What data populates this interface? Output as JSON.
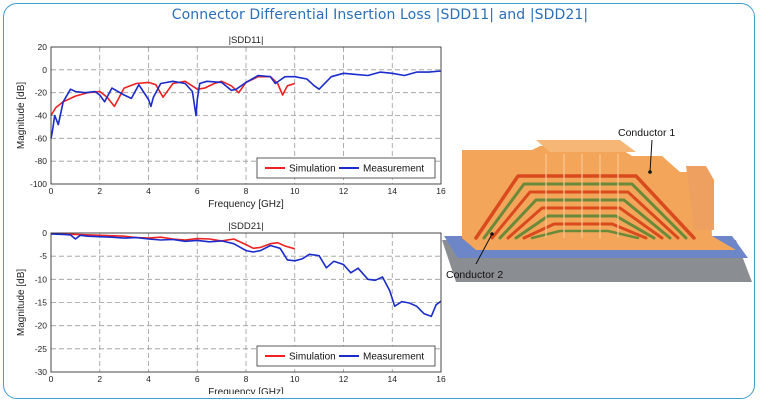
{
  "page": {
    "title": "Connector Differential Insertion Loss |SDD11| and |SDD21|"
  },
  "colors": {
    "simulation": "#ee2222",
    "measurement": "#1a2ccc",
    "title": "#2a6fb8",
    "frame": "#3c9fd1"
  },
  "chart_data": [
    {
      "type": "line",
      "title": "|SDD11|",
      "xlabel": "Frequency [GHz]",
      "ylabel": "Magnitude [dB]",
      "xlim": [
        0,
        16
      ],
      "ylim": [
        -100,
        20
      ],
      "xticks": [
        0,
        2,
        4,
        6,
        8,
        10,
        12,
        14,
        16
      ],
      "yticks": [
        20,
        0,
        -20,
        -40,
        -60,
        -80,
        -100
      ],
      "grid": true,
      "legend": "bottom-right",
      "series": [
        {
          "name": "Simulation",
          "color": "#ee2222",
          "x": [
            0,
            0.2,
            0.5,
            1,
            1.5,
            2,
            2.3,
            2.6,
            3,
            3.5,
            4,
            4.3,
            4.6,
            5,
            5.5,
            6,
            6.3,
            6.7,
            7,
            7.4,
            7.7,
            8,
            8.5,
            9,
            9.3,
            9.5,
            9.7,
            10
          ],
          "y": [
            -40,
            -33,
            -28,
            -23,
            -20,
            -19,
            -24,
            -32,
            -16,
            -12,
            -11,
            -13,
            -24,
            -12,
            -10,
            -17,
            -16,
            -12,
            -10,
            -14,
            -20,
            -11,
            -6,
            -6,
            -12,
            -22,
            -14,
            -12
          ]
        },
        {
          "name": "Measurement",
          "color": "#1a2ccc",
          "x": [
            0,
            0.05,
            0.15,
            0.3,
            0.5,
            0.8,
            1,
            1.4,
            1.8,
            2,
            2.2,
            2.5,
            3,
            3.3,
            3.6,
            4,
            4.1,
            4.2,
            4.5,
            5,
            5.5,
            5.8,
            5.95,
            6,
            6.1,
            6.4,
            7,
            7.4,
            7.6,
            8,
            8.5,
            9,
            9.2,
            9.4,
            9.6,
            10,
            10.5,
            10.8,
            11,
            11.5,
            12,
            12.5,
            13,
            13.5,
            14,
            14.5,
            15,
            15.5,
            16
          ],
          "y": [
            -60,
            -55,
            -40,
            -48,
            -28,
            -17,
            -19,
            -20,
            -19,
            -22,
            -28,
            -16,
            -22,
            -25,
            -13,
            -26,
            -32,
            -24,
            -12,
            -10,
            -12,
            -19,
            -40,
            -26,
            -12,
            -10,
            -11,
            -18,
            -17,
            -11,
            -5,
            -6,
            -12,
            -9,
            -6,
            -6,
            -8,
            -14,
            -17,
            -6,
            -3,
            -4,
            -5,
            -2,
            -3,
            -5,
            -2,
            -2,
            -1
          ]
        }
      ]
    },
    {
      "type": "line",
      "title": "|SDD21|",
      "xlabel": "Frequency [GHz]",
      "ylabel": "Magnitude [dB]",
      "xlim": [
        0,
        16
      ],
      "ylim": [
        -30,
        0
      ],
      "xticks": [
        0,
        2,
        4,
        6,
        8,
        10,
        12,
        14,
        16
      ],
      "yticks": [
        0,
        -5,
        -10,
        -15,
        -20,
        -25,
        -30
      ],
      "grid": true,
      "legend": "bottom-right",
      "series": [
        {
          "name": "Simulation",
          "color": "#ee2222",
          "x": [
            0,
            0.5,
            1,
            2,
            3,
            3.5,
            4,
            4.5,
            5,
            5.5,
            6,
            6.5,
            7,
            7.5,
            8,
            8.3,
            8.6,
            9,
            9.3,
            9.6,
            10
          ],
          "y": [
            -0.1,
            -0.2,
            -0.3,
            -0.5,
            -0.7,
            -1,
            -1.1,
            -0.9,
            -1.3,
            -1.5,
            -1.2,
            -1.3,
            -1.7,
            -1.3,
            -2.5,
            -3.3,
            -3.1,
            -2.3,
            -2.1,
            -2.8,
            -3.4
          ]
        },
        {
          "name": "Measurement",
          "color": "#1a2ccc",
          "x": [
            0,
            0.5,
            0.8,
            1,
            1.2,
            1.5,
            2,
            2.5,
            3,
            3.5,
            4,
            4.5,
            5,
            5.5,
            6,
            6.5,
            7,
            7.5,
            8,
            8.3,
            8.6,
            9,
            9.4,
            9.7,
            10,
            10.3,
            10.6,
            11,
            11.3,
            11.6,
            12,
            12.3,
            12.6,
            13,
            13.3,
            13.6,
            13.9,
            14.1,
            14.4,
            14.7,
            15,
            15.3,
            15.6,
            15.8,
            16
          ],
          "y": [
            -0.2,
            -0.3,
            -0.4,
            -1.3,
            -0.5,
            -0.7,
            -0.8,
            -0.9,
            -1.1,
            -1,
            -1.3,
            -1.5,
            -1.4,
            -1.8,
            -1.6,
            -1.9,
            -1.7,
            -2.3,
            -3.8,
            -4.1,
            -3.8,
            -2.7,
            -3.3,
            -5.8,
            -6,
            -5.6,
            -4.6,
            -4.9,
            -7.5,
            -6.1,
            -6.8,
            -8.6,
            -7.6,
            -10,
            -10.2,
            -9.5,
            -12.5,
            -15.8,
            -14.8,
            -15.1,
            -15.8,
            -17.4,
            -18,
            -15.5,
            -14.7
          ]
        }
      ]
    }
  ],
  "model": {
    "label_1": "Conductor 1",
    "label_2": "Conductor 2"
  }
}
